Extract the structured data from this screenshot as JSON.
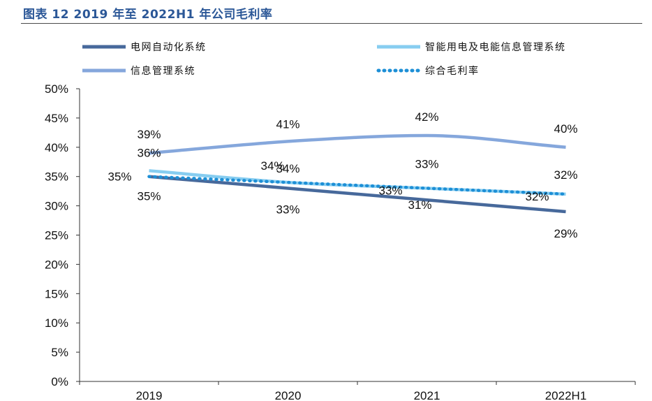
{
  "header": {
    "title": "图表 12 2019 年至 2022H1 年公司毛利率"
  },
  "chart_data": {
    "type": "line",
    "categories": [
      "2019",
      "2020",
      "2021",
      "2022H1"
    ],
    "ylim": [
      0,
      50
    ],
    "yticks": [
      "0%",
      "5%",
      "10%",
      "15%",
      "20%",
      "25%",
      "30%",
      "35%",
      "40%",
      "45%",
      "50%"
    ],
    "legend_position": "top",
    "grid": false,
    "series": [
      {
        "name": "电网自动化系统",
        "values": [
          35,
          33,
          31,
          29
        ],
        "labels": [
          "35%",
          "33%",
          "31%",
          "29%"
        ],
        "color": "#47699b",
        "style": "solid"
      },
      {
        "name": "智能用电及电能信息管理系统",
        "values": [
          36,
          34,
          33,
          32
        ],
        "labels": [
          "36%",
          "34%",
          "33%",
          "32%"
        ],
        "color": "#87cdf0",
        "style": "solid"
      },
      {
        "name": "信息管理系统",
        "values": [
          39,
          41,
          42,
          40
        ],
        "labels": [
          "39%",
          "41%",
          "42%",
          "40%"
        ],
        "color": "#85a7dc",
        "style": "solid"
      },
      {
        "name": "综合毛利率",
        "values": [
          35,
          34,
          33,
          32
        ],
        "labels": [
          "35%",
          "34%",
          "33%",
          "32%"
        ],
        "color": "#1d8fd6",
        "style": "dotted"
      }
    ]
  }
}
